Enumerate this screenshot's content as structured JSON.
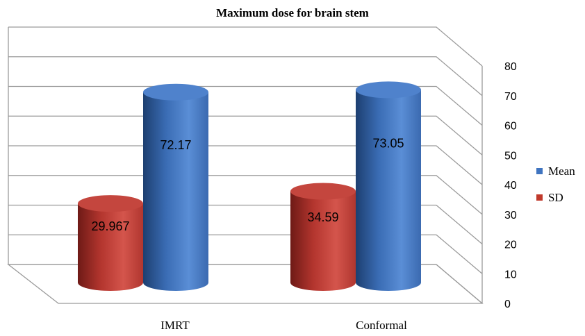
{
  "chart_data": {
    "type": "bar",
    "style": "3d-cylinder",
    "title": "Maximum dose for brain stem",
    "categories": [
      "IMRT",
      "Conformal"
    ],
    "series": [
      {
        "name": "SD",
        "values": [
          29.967,
          34.59
        ],
        "labels": [
          "29.967",
          "34.59"
        ],
        "color": "#c0392b"
      },
      {
        "name": "Mean",
        "values": [
          72.17,
          73.05
        ],
        "labels": [
          "72.17",
          "73.05"
        ],
        "color": "#3f74c0"
      }
    ],
    "ylim": [
      0,
      80
    ],
    "yticks": [
      "0",
      "10",
      "20",
      "30",
      "40",
      "50",
      "60",
      "70",
      "80"
    ],
    "grid": true,
    "legend_position": "right",
    "legend": [
      "Mean",
      "SD"
    ]
  }
}
